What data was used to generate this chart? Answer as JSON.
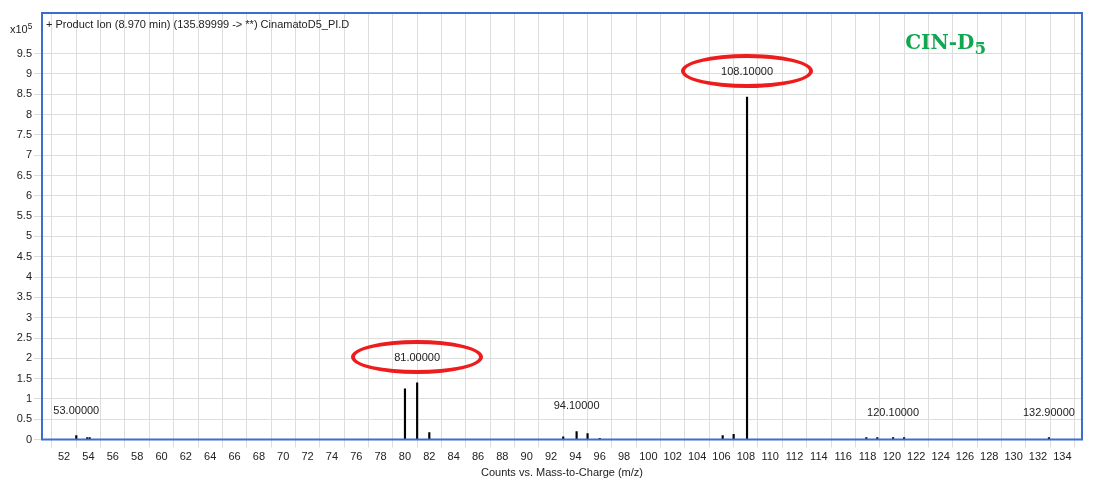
{
  "chart_data": {
    "type": "bar",
    "title": "+ Product Ion (8.970 min) (135.89999 -> **) CinamatoD5_PI.D",
    "xlabel": "Counts vs. Mass-to-Charge (m/z)",
    "ylabel": "x10$^{5}$",
    "x": [
      53.0,
      53.9,
      54.1,
      80.0,
      81.0,
      82.0,
      93.0,
      94.1,
      95.0,
      96.0,
      106.1,
      107.0,
      108.1,
      117.9,
      118.8,
      120.1,
      121.0,
      132.9
    ],
    "values": [
      0.1,
      0.05,
      0.05,
      1.25,
      1.4,
      0.17,
      0.07,
      0.2,
      0.15,
      0.03,
      0.1,
      0.13,
      8.43,
      0.05,
      0.05,
      0.05,
      0.05,
      0.05
    ],
    "color": "#000000",
    "xlim": [
      51.2,
      134.6
    ],
    "xticks": [
      52,
      54,
      56,
      58,
      60,
      62,
      64,
      66,
      68,
      70,
      72,
      74,
      76,
      78,
      80,
      82,
      84,
      86,
      88,
      90,
      92,
      94,
      96,
      98,
      100,
      102,
      104,
      106,
      108,
      110,
      112,
      114,
      116,
      118,
      120,
      122,
      124,
      126,
      128,
      130,
      132,
      134
    ],
    "ylim": [
      0,
      10.5
    ],
    "yticks": [
      0,
      0.5,
      1,
      1.5,
      2,
      2.5,
      3,
      3.5,
      4,
      4.5,
      5,
      5.5,
      6,
      6.5,
      7,
      7.5,
      8,
      8.5,
      9,
      9.5
    ],
    "grid": true,
    "annotations": [
      {
        "text": "53.00000",
        "x": 53.0,
        "y": 0.1
      },
      {
        "text": "81.00000",
        "x": 81.0,
        "y": 1.4
      },
      {
        "text": "94.10000",
        "x": 94.1,
        "y": 0.2
      },
      {
        "text": "108.10000",
        "x": 108.1,
        "y": 8.43
      },
      {
        "text": "120.10000",
        "x": 120.1,
        "y": 0.05
      },
      {
        "text": "132.90000",
        "x": 132.9,
        "y": 0.05
      },
      "CIN-D$_{5}$"
    ]
  }
}
